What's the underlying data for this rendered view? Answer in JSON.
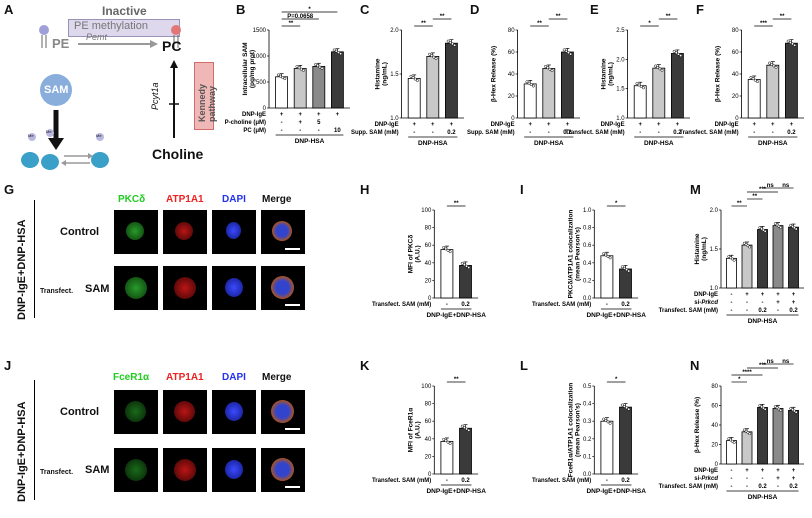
{
  "panel_labels": [
    "A",
    "B",
    "C",
    "D",
    "E",
    "F",
    "G",
    "H",
    "I",
    "M",
    "J",
    "K",
    "L",
    "N"
  ],
  "schematic": {
    "inactive": "Inactive",
    "pe_methylation": "PE methylation",
    "pe": "PE",
    "pemt": "Pemt",
    "pc": "PC",
    "sam": "SAM",
    "pcyt1a": "Pcyt1a",
    "kennedy": "Kennedy pathway",
    "choline": "Choline",
    "me": "Me"
  },
  "bar_colors": {
    "c0": "#ffffff",
    "c1": "#c8c8c8",
    "c2": "#8a8a8a",
    "c3": "#3a3a3a"
  },
  "imaging": {
    "G": {
      "side_label": "DNP-IgE+DNP-HSA",
      "columns": [
        "PKCδ",
        "ATP1A1",
        "DAPI",
        "Merge"
      ],
      "column_colors": [
        "#22cc22",
        "#ee2222",
        "#2233ee",
        "#222"
      ],
      "rows": [
        "Control",
        "SAM"
      ],
      "transfect": "Transfect."
    },
    "J": {
      "side_label": "DNP-IgE+DNP-HSA",
      "columns": [
        "FceR1α",
        "ATP1A1",
        "DAPI",
        "Merge"
      ],
      "column_colors": [
        "#22cc22",
        "#ee2222",
        "#2233ee",
        "#222"
      ],
      "rows": [
        "Control",
        "SAM"
      ],
      "transfect": "Transfect."
    }
  },
  "chart_data": [
    {
      "panel": "B",
      "type": "bar",
      "ylabel": "Intracellular SAM\n(pg/mg prot)",
      "ylim": [
        0,
        1500
      ],
      "yticks": [
        0,
        500,
        1000,
        1500
      ],
      "values": [
        600,
        760,
        800,
        1080
      ],
      "colors": [
        "c0",
        "c1",
        "c2",
        "c3"
      ],
      "conditions": [
        {
          "label": "DNP-IgE",
          "cells": [
            "+",
            "+",
            "+",
            "+"
          ]
        },
        {
          "label": "P-choline (μM)",
          "cells": [
            "-",
            "+",
            "5",
            ""
          ]
        },
        {
          "label": "PC (μM)",
          "cells": [
            "-",
            "-",
            "-",
            "10"
          ]
        }
      ],
      "group_label": "DNP-HSA",
      "sig": [
        {
          "from": 0,
          "to": 1,
          "text": "**"
        },
        {
          "from": 0,
          "to": 2,
          "text": "P=0.0658"
        },
        {
          "from": 0,
          "to": 3,
          "text": "*"
        }
      ]
    },
    {
      "panel": "C",
      "type": "bar",
      "ylabel": "Histamine\n(ng/mL)",
      "ylim": [
        1.0,
        2.0
      ],
      "yticks": [
        1.0,
        1.5,
        2.0
      ],
      "values": [
        1.45,
        1.7,
        1.85
      ],
      "colors": [
        "c0",
        "c1",
        "c3"
      ],
      "conditions": [
        {
          "label": "DNP-IgE",
          "cells": [
            "+",
            "+",
            "+"
          ]
        },
        {
          "label": "Supp. SAM (mM)",
          "cells": [
            "-",
            "-",
            "0.2"
          ]
        }
      ],
      "group_label": "DNP-HSA",
      "sig": [
        {
          "from": 0,
          "to": 1,
          "text": "**"
        },
        {
          "from": 1,
          "to": 2,
          "text": "**"
        }
      ]
    },
    {
      "panel": "D",
      "type": "bar",
      "ylabel": "β-Hex Release (%)",
      "ylim": [
        0,
        80
      ],
      "yticks": [
        0,
        20,
        40,
        60,
        80
      ],
      "values": [
        31,
        45,
        60
      ],
      "colors": [
        "c0",
        "c1",
        "c3"
      ],
      "conditions": [
        {
          "label": "DNP-IgE",
          "cells": [
            "+",
            "+",
            "+"
          ]
        },
        {
          "label": "Supp. SAM (mM)",
          "cells": [
            "-",
            "-",
            "0.2"
          ]
        }
      ],
      "group_label": "DNP-HSA",
      "sig": [
        {
          "from": 0,
          "to": 1,
          "text": "**"
        },
        {
          "from": 1,
          "to": 2,
          "text": "**"
        }
      ]
    },
    {
      "panel": "E",
      "type": "bar",
      "ylabel": "Histamine\n(ng/mL)",
      "ylim": [
        1.0,
        2.5
      ],
      "yticks": [
        1.0,
        1.5,
        2.0,
        2.5
      ],
      "values": [
        1.55,
        1.85,
        2.1
      ],
      "colors": [
        "c0",
        "c1",
        "c3"
      ],
      "conditions": [
        {
          "label": "DNP-IgE",
          "cells": [
            "+",
            "+",
            "+"
          ]
        },
        {
          "label": "Transfect. SAM (mM)",
          "cells": [
            "-",
            "-",
            "0.2"
          ]
        }
      ],
      "group_label": "DNP-HSA",
      "sig": [
        {
          "from": 0,
          "to": 1,
          "text": "*"
        },
        {
          "from": 1,
          "to": 2,
          "text": "**"
        }
      ]
    },
    {
      "panel": "F",
      "type": "bar",
      "ylabel": "β-Hex Release (%)",
      "ylim": [
        0,
        80
      ],
      "yticks": [
        0,
        20,
        40,
        60,
        80
      ],
      "values": [
        35,
        48,
        68
      ],
      "colors": [
        "c0",
        "c1",
        "c3"
      ],
      "conditions": [
        {
          "label": "DNP-IgE",
          "cells": [
            "+",
            "+",
            "+"
          ]
        },
        {
          "label": "Transfect. SAM (mM)",
          "cells": [
            "-",
            "-",
            "0.2"
          ]
        }
      ],
      "group_label": "DNP-HSA",
      "sig": [
        {
          "from": 0,
          "to": 1,
          "text": "***"
        },
        {
          "from": 1,
          "to": 2,
          "text": "**"
        }
      ]
    },
    {
      "panel": "H",
      "type": "bar",
      "ylabel": "MFI of PKCδ\n(A.U.)",
      "ylim": [
        0,
        100
      ],
      "yticks": [
        0,
        20,
        40,
        60,
        80,
        100
      ],
      "values": [
        55,
        37
      ],
      "colors": [
        "c0",
        "c3"
      ],
      "conditions": [
        {
          "label": "Transfect. SAM (mM)",
          "cells": [
            "-",
            "0.2"
          ]
        }
      ],
      "group_label": "DNP-IgE+DNP-HSA",
      "sig": [
        {
          "from": 0,
          "to": 1,
          "text": "**"
        }
      ]
    },
    {
      "panel": "I",
      "type": "bar",
      "ylabel": "PKCδ/ATP1A1 colocalization\n(mean Pearson's)",
      "ylim": [
        0,
        1.0
      ],
      "yticks": [
        0.0,
        0.2,
        0.4,
        0.6,
        0.8,
        1.0
      ],
      "values": [
        0.48,
        0.33
      ],
      "colors": [
        "c0",
        "c3"
      ],
      "conditions": [
        {
          "label": "Transfect. SAM (mM)",
          "cells": [
            "-",
            "0.2"
          ]
        }
      ],
      "group_label": "DNP-IgE+DNP-HSA",
      "sig": [
        {
          "from": 0,
          "to": 1,
          "text": "*"
        }
      ]
    },
    {
      "panel": "M",
      "type": "bar",
      "ylabel": "Histamine\n(ng/mL)",
      "ylim": [
        1.0,
        2.0
      ],
      "yticks": [
        1.0,
        1.5,
        2.0
      ],
      "values": [
        1.38,
        1.55,
        1.75,
        1.8,
        1.78
      ],
      "colors": [
        "c0",
        "c1",
        "c3",
        "c2",
        "c3"
      ],
      "conditions": [
        {
          "label": "DNP-IgE",
          "cells": [
            "-",
            "+",
            "+",
            "+",
            "+"
          ]
        },
        {
          "label": "si-Prkcd",
          "cells": [
            "-",
            "-",
            "-",
            "+",
            "+"
          ]
        },
        {
          "label": "Transfect. SAM (mM)",
          "cells": [
            "-",
            "-",
            "0.2",
            "-",
            "0.2"
          ]
        }
      ],
      "group_label": "DNP-HSA",
      "sig": [
        {
          "from": 0,
          "to": 1,
          "text": "**"
        },
        {
          "from": 1,
          "to": 2,
          "text": "**"
        },
        {
          "from": 1,
          "to": 3,
          "text": "***"
        },
        {
          "from": 2,
          "to": 3,
          "text": "ns"
        },
        {
          "from": 3,
          "to": 4,
          "text": "ns"
        }
      ]
    },
    {
      "panel": "K",
      "type": "bar",
      "ylabel": "MFI of FceR1α\n(A.U.)",
      "ylim": [
        0,
        100
      ],
      "yticks": [
        0,
        20,
        40,
        60,
        80,
        100
      ],
      "values": [
        37,
        52
      ],
      "colors": [
        "c0",
        "c3"
      ],
      "conditions": [
        {
          "label": "Transfect. SAM (mM)",
          "cells": [
            "-",
            "0.2"
          ]
        }
      ],
      "group_label": "DNP-IgE+DNP-HSA",
      "sig": [
        {
          "from": 0,
          "to": 1,
          "text": "**"
        }
      ]
    },
    {
      "panel": "L",
      "type": "bar",
      "ylabel": "FceR1α/ATP1A1 colocalization\n(mean Pearson's)",
      "ylim": [
        0,
        0.5
      ],
      "yticks": [
        0.0,
        0.1,
        0.2,
        0.3,
        0.4,
        0.5
      ],
      "values": [
        0.3,
        0.38
      ],
      "colors": [
        "c0",
        "c3"
      ],
      "conditions": [
        {
          "label": "Transfect. SAM (mM)",
          "cells": [
            "-",
            "0.2"
          ]
        }
      ],
      "group_label": "DNP-IgE+DNP-HSA",
      "sig": [
        {
          "from": 0,
          "to": 1,
          "text": "*"
        }
      ]
    },
    {
      "panel": "N",
      "type": "bar",
      "ylabel": "β-Hex Release (%)",
      "ylim": [
        0,
        80
      ],
      "yticks": [
        0,
        20,
        40,
        60,
        80
      ],
      "values": [
        24,
        33,
        58,
        57,
        55
      ],
      "colors": [
        "c0",
        "c1",
        "c3",
        "c2",
        "c3"
      ],
      "conditions": [
        {
          "label": "DNP-IgE",
          "cells": [
            "-",
            "+",
            "+",
            "+",
            "+"
          ]
        },
        {
          "label": "si-Prkcd",
          "cells": [
            "-",
            "-",
            "-",
            "+",
            "+"
          ]
        },
        {
          "label": "Transfect. SAM (mM)",
          "cells": [
            "-",
            "-",
            "0.2",
            "-",
            "0.2"
          ]
        }
      ],
      "group_label": "DNP-HSA",
      "sig": [
        {
          "from": 0,
          "to": 1,
          "text": "*"
        },
        {
          "from": 0,
          "to": 2,
          "text": "****"
        },
        {
          "from": 1,
          "to": 3,
          "text": "***"
        },
        {
          "from": 2,
          "to": 3,
          "text": "ns"
        },
        {
          "from": 3,
          "to": 4,
          "text": "ns"
        }
      ]
    }
  ]
}
